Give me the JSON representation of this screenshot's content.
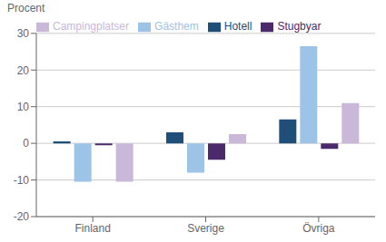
{
  "chart_data": {
    "type": "bar",
    "ylabel": "Procent",
    "categories": [
      "Finland",
      "Sverige",
      "Övriga"
    ],
    "series": [
      {
        "name": "Hotell",
        "color": "#1F4E79",
        "values": [
          0.5,
          3.0,
          6.5
        ]
      },
      {
        "name": "Gästhem",
        "color": "#9DC3E6",
        "values": [
          -10.5,
          -8.0,
          26.5
        ]
      },
      {
        "name": "Stugbyar",
        "color": "#4B2A6B",
        "values": [
          -0.5,
          -4.5,
          -1.5
        ]
      },
      {
        "name": "Campingplatser",
        "color": "#C9B8D8",
        "values": [
          -10.5,
          2.5,
          11.0
        ]
      }
    ],
    "ylim": [
      -20,
      30
    ],
    "yticks": [
      -20,
      -10,
      0,
      10,
      20,
      30
    ],
    "grid": true,
    "legend": "upper left"
  }
}
